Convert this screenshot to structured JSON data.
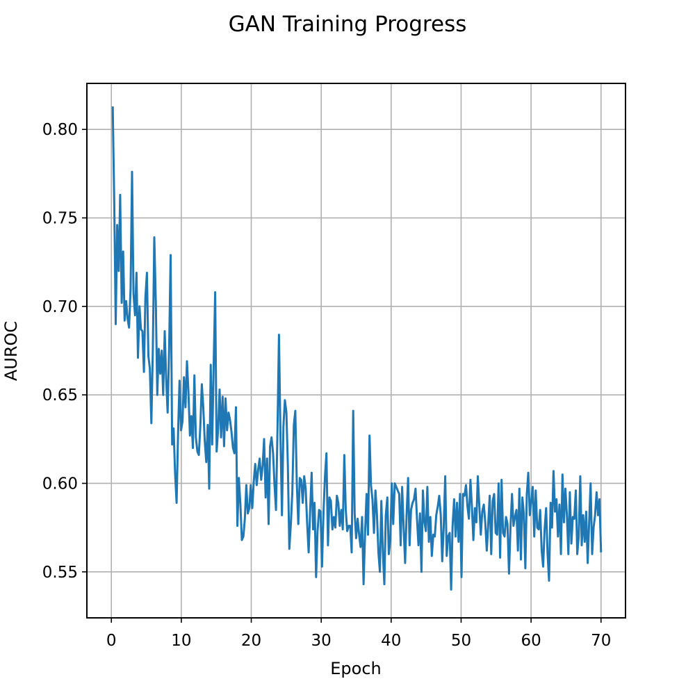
{
  "chart_data": {
    "type": "line",
    "title": "GAN Training Progress",
    "xlabel": "Epoch",
    "ylabel": "AUROC",
    "xlim": [
      -3.5,
      73.5
    ],
    "ylim": [
      0.524,
      0.826
    ],
    "x_ticks": [
      0,
      10,
      20,
      30,
      40,
      50,
      60,
      70
    ],
    "x_tick_labels": [
      "0",
      "10",
      "20",
      "30",
      "40",
      "50",
      "60",
      "70"
    ],
    "y_ticks": [
      0.55,
      0.6,
      0.65,
      0.7,
      0.75,
      0.8
    ],
    "y_tick_labels": [
      "0.55",
      "0.60",
      "0.65",
      "0.70",
      "0.75",
      "0.80"
    ],
    "grid": true,
    "legend": "none",
    "colors": {
      "line": "#1f77b4"
    },
    "x_start": 0.2,
    "x_end": 70.0,
    "series": [
      {
        "values": [
          0.813,
          0.758,
          0.69,
          0.746,
          0.72,
          0.763,
          0.702,
          0.731,
          0.692,
          0.703,
          0.693,
          0.688,
          0.71,
          0.776,
          0.707,
          0.695,
          0.719,
          0.671,
          0.7,
          0.687,
          0.686,
          0.663,
          0.705,
          0.719,
          0.672,
          0.665,
          0.634,
          0.676,
          0.739,
          0.702,
          0.65,
          0.676,
          0.662,
          0.675,
          0.65,
          0.686,
          0.659,
          0.64,
          0.677,
          0.729,
          0.622,
          0.631,
          0.606,
          0.589,
          0.628,
          0.658,
          0.63,
          0.635,
          0.66,
          0.643,
          0.669,
          0.652,
          0.627,
          0.638,
          0.62,
          0.661,
          0.626,
          0.618,
          0.616,
          0.632,
          0.656,
          0.643,
          0.624,
          0.612,
          0.633,
          0.597,
          0.667,
          0.622,
          0.666,
          0.708,
          0.618,
          0.631,
          0.653,
          0.626,
          0.649,
          0.621,
          0.648,
          0.63,
          0.64,
          0.636,
          0.629,
          0.62,
          0.617,
          0.643,
          0.576,
          0.603,
          0.588,
          0.568,
          0.57,
          0.58,
          0.599,
          0.583,
          0.586,
          0.599,
          0.586,
          0.601,
          0.611,
          0.599,
          0.608,
          0.614,
          0.602,
          0.61,
          0.625,
          0.592,
          0.614,
          0.577,
          0.621,
          0.626,
          0.617,
          0.599,
          0.585,
          0.631,
          0.684,
          0.628,
          0.582,
          0.632,
          0.647,
          0.64,
          0.61,
          0.563,
          0.577,
          0.595,
          0.633,
          0.641,
          0.601,
          0.577,
          0.603,
          0.602,
          0.589,
          0.604,
          0.597,
          0.577,
          0.561,
          0.584,
          0.606,
          0.574,
          0.589,
          0.547,
          0.573,
          0.585,
          0.584,
          0.553,
          0.584,
          0.604,
          0.617,
          0.565,
          0.592,
          0.59,
          0.574,
          0.581,
          0.575,
          0.593,
          0.589,
          0.576,
          0.585,
          0.574,
          0.616,
          0.585,
          0.573,
          0.576,
          0.576,
          0.561,
          0.641,
          0.583,
          0.569,
          0.58,
          0.571,
          0.564,
          0.581,
          0.543,
          0.572,
          0.594,
          0.571,
          0.627,
          0.599,
          0.591,
          0.572,
          0.596,
          0.583,
          0.561,
          0.55,
          0.59,
          0.561,
          0.543,
          0.582,
          0.592,
          0.56,
          0.568,
          0.6,
          0.577,
          0.6,
          0.598,
          0.596,
          0.594,
          0.565,
          0.598,
          0.575,
          0.555,
          0.582,
          0.603,
          0.565,
          0.585,
          0.589,
          0.591,
          0.597,
          0.58,
          0.565,
          0.583,
          0.55,
          0.596,
          0.578,
          0.573,
          0.598,
          0.567,
          0.581,
          0.559,
          0.571,
          0.57,
          0.582,
          0.587,
          0.593,
          0.582,
          0.556,
          0.575,
          0.604,
          0.559,
          0.57,
          0.572,
          0.54,
          0.576,
          0.591,
          0.57,
          0.589,
          0.567,
          0.594,
          0.547,
          0.594,
          0.593,
          0.599,
          0.587,
          0.58,
          0.602,
          0.587,
          0.568,
          0.586,
          0.578,
          0.604,
          0.587,
          0.571,
          0.584,
          0.588,
          0.578,
          0.562,
          0.577,
          0.593,
          0.56,
          0.59,
          0.594,
          0.572,
          0.571,
          0.6,
          0.558,
          0.602,
          0.572,
          0.57,
          0.581,
          0.577,
          0.549,
          0.575,
          0.594,
          0.576,
          0.581,
          0.585,
          0.562,
          0.597,
          0.557,
          0.592,
          0.583,
          0.552,
          0.594,
          0.606,
          0.582,
          0.59,
          0.598,
          0.57,
          0.596,
          0.575,
          0.574,
          0.585,
          0.562,
          0.553,
          0.574,
          0.586,
          0.56,
          0.545,
          0.589,
          0.575,
          0.607,
          0.584,
          0.591,
          0.57,
          0.588,
          0.56,
          0.605,
          0.578,
          0.597,
          0.582,
          0.56,
          0.595,
          0.566,
          0.581,
          0.58,
          0.596,
          0.56,
          0.57,
          0.604,
          0.565,
          0.582,
          0.567,
          0.584,
          0.555,
          0.578,
          0.6,
          0.56,
          0.575,
          0.582,
          0.595,
          0.582,
          0.591,
          0.561
        ]
      }
    ]
  }
}
